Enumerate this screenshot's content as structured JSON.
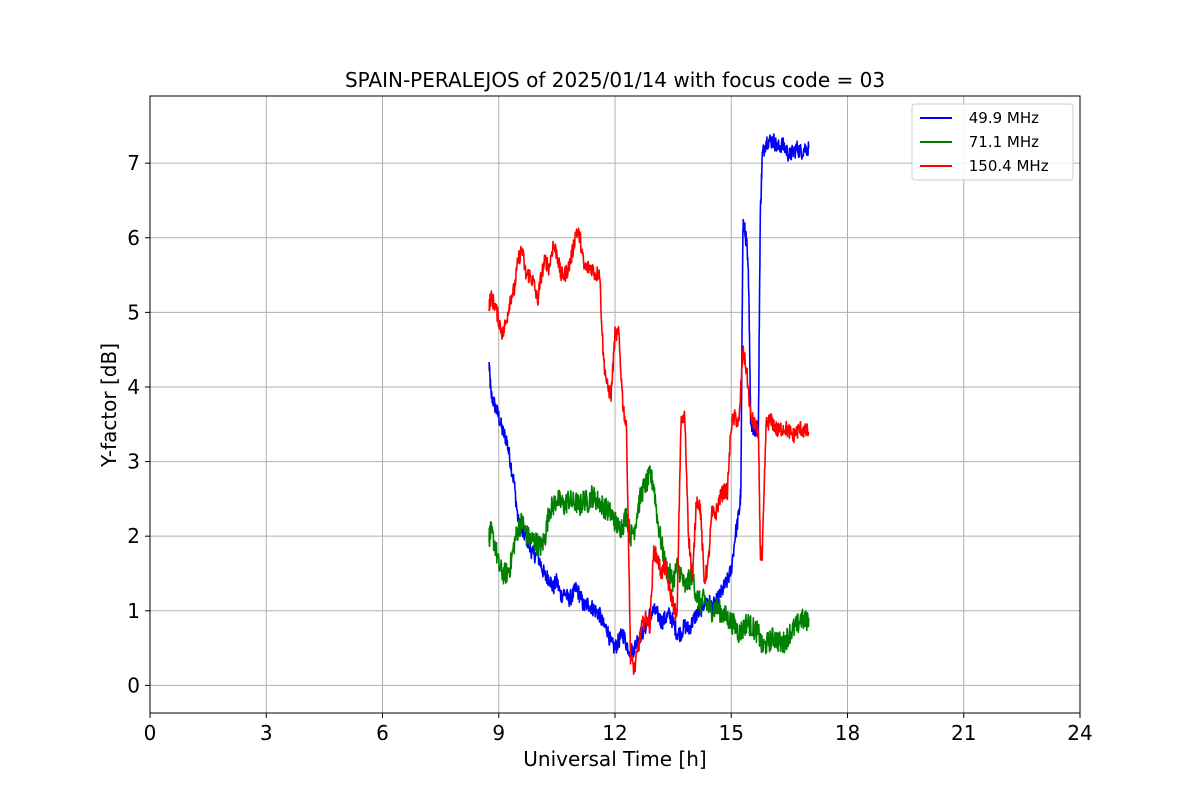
{
  "chart_data": {
    "type": "line",
    "title": "SPAIN-PERALEJOS of 2025/01/14 with focus code = 03",
    "xlabel": "Universal Time [h]",
    "ylabel": "Y-factor [dB]",
    "xlim": [
      0,
      24
    ],
    "ylim": [
      -0.37,
      7.9
    ],
    "xticks": [
      0,
      3,
      6,
      9,
      12,
      15,
      18,
      21,
      24
    ],
    "yticks": [
      0,
      1,
      2,
      3,
      4,
      5,
      6,
      7
    ],
    "grid": true,
    "legend_position": "top-right",
    "series": [
      {
        "name": " 49.9 MHz",
        "color": "#0000ff",
        "noise": 0.22,
        "x": [
          8.75,
          8.8,
          8.9,
          9.0,
          9.1,
          9.2,
          9.3,
          9.4,
          9.5,
          9.6,
          9.7,
          9.8,
          9.9,
          10.0,
          10.1,
          10.2,
          10.3,
          10.4,
          10.5,
          10.6,
          10.7,
          10.8,
          10.9,
          11.0,
          11.1,
          11.2,
          11.3,
          11.4,
          11.5,
          11.6,
          11.7,
          11.8,
          11.9,
          12.0,
          12.1,
          12.2,
          12.3,
          12.4,
          12.5,
          12.6,
          12.7,
          12.8,
          12.9,
          13.0,
          13.1,
          13.2,
          13.3,
          13.4,
          13.5,
          13.6,
          13.7,
          13.8,
          13.9,
          14.0,
          14.1,
          14.2,
          14.3,
          14.4,
          14.5,
          14.6,
          14.7,
          14.8,
          14.9,
          15.0,
          15.1,
          15.2,
          15.25,
          15.3,
          15.35,
          15.4,
          15.45,
          15.5,
          15.55,
          15.6,
          15.65,
          15.7,
          15.75,
          15.8,
          15.9,
          16.0,
          16.1,
          16.2,
          16.3,
          16.4,
          16.5,
          16.6,
          16.7,
          16.8,
          16.9,
          17.0
        ],
        "y": [
          4.3,
          3.9,
          3.75,
          3.6,
          3.4,
          3.3,
          3.0,
          2.7,
          2.2,
          2.05,
          2.0,
          1.85,
          1.75,
          1.75,
          1.6,
          1.45,
          1.45,
          1.3,
          1.4,
          1.2,
          1.25,
          1.15,
          1.2,
          1.3,
          1.2,
          1.05,
          1.1,
          1.05,
          1.0,
          0.95,
          0.8,
          0.75,
          0.55,
          0.5,
          0.6,
          0.7,
          0.55,
          0.45,
          0.5,
          0.65,
          0.7,
          0.8,
          0.95,
          1.0,
          0.95,
          0.85,
          0.9,
          0.95,
          0.85,
          0.7,
          0.7,
          0.8,
          0.75,
          0.85,
          0.95,
          1.0,
          1.1,
          1.15,
          1.05,
          1.1,
          1.2,
          1.3,
          1.4,
          1.55,
          2.0,
          2.3,
          2.6,
          6.2,
          6.1,
          5.9,
          5.4,
          3.6,
          3.45,
          3.4,
          3.45,
          3.45,
          6.3,
          7.1,
          7.3,
          7.3,
          7.3,
          7.2,
          7.25,
          7.2,
          7.1,
          7.15,
          7.2,
          7.15,
          7.2,
          7.2
        ]
      },
      {
        "name": " 71.1 MHz",
        "color": "#008000",
        "noise": 0.3,
        "x": [
          8.75,
          8.8,
          8.9,
          9.0,
          9.1,
          9.2,
          9.3,
          9.4,
          9.5,
          9.6,
          9.7,
          9.8,
          9.9,
          10.0,
          10.1,
          10.2,
          10.3,
          10.4,
          10.5,
          10.6,
          10.7,
          10.8,
          10.9,
          11.0,
          11.1,
          11.2,
          11.3,
          11.4,
          11.5,
          11.6,
          11.7,
          11.8,
          11.9,
          12.0,
          12.1,
          12.2,
          12.3,
          12.4,
          12.5,
          12.6,
          12.7,
          12.8,
          12.9,
          13.0,
          13.1,
          13.2,
          13.3,
          13.4,
          13.5,
          13.6,
          13.7,
          13.8,
          13.9,
          14.0,
          14.1,
          14.2,
          14.3,
          14.4,
          14.5,
          14.6,
          14.7,
          14.8,
          14.9,
          15.0,
          15.1,
          15.2,
          15.3,
          15.4,
          15.5,
          15.6,
          15.7,
          15.8,
          15.9,
          16.0,
          16.1,
          16.2,
          16.3,
          16.4,
          16.5,
          16.6,
          16.7,
          16.8,
          16.9,
          17.0
        ],
        "y": [
          2.0,
          2.05,
          1.9,
          1.6,
          1.5,
          1.5,
          1.6,
          1.9,
          2.1,
          2.2,
          2.05,
          1.95,
          1.95,
          1.9,
          1.85,
          2.0,
          2.35,
          2.4,
          2.5,
          2.45,
          2.4,
          2.5,
          2.45,
          2.45,
          2.4,
          2.5,
          2.45,
          2.55,
          2.5,
          2.45,
          2.4,
          2.35,
          2.3,
          2.2,
          2.1,
          2.15,
          2.3,
          2.0,
          2.1,
          2.4,
          2.6,
          2.7,
          2.8,
          2.7,
          2.2,
          1.9,
          1.6,
          1.5,
          1.4,
          1.6,
          1.5,
          1.3,
          1.4,
          1.5,
          1.2,
          1.1,
          1.15,
          1.05,
          1.0,
          1.05,
          1.0,
          0.95,
          0.9,
          0.85,
          0.8,
          0.7,
          0.75,
          0.85,
          0.8,
          0.75,
          0.7,
          0.5,
          0.55,
          0.6,
          0.65,
          0.6,
          0.55,
          0.6,
          0.7,
          0.75,
          0.8,
          0.9,
          0.85,
          0.9
        ]
      },
      {
        "name": " 150.4 MHz",
        "color": "#ff0000",
        "noise": 0.22,
        "x": [
          8.75,
          8.8,
          8.9,
          9.0,
          9.1,
          9.2,
          9.3,
          9.4,
          9.5,
          9.6,
          9.7,
          9.8,
          9.9,
          10.0,
          10.1,
          10.2,
          10.3,
          10.4,
          10.5,
          10.6,
          10.7,
          10.8,
          10.9,
          11.0,
          11.1,
          11.2,
          11.3,
          11.4,
          11.5,
          11.6,
          11.7,
          11.8,
          11.9,
          12.0,
          12.1,
          12.2,
          12.3,
          12.4,
          12.5,
          12.6,
          12.7,
          12.8,
          12.9,
          13.0,
          13.1,
          13.2,
          13.3,
          13.4,
          13.5,
          13.6,
          13.7,
          13.8,
          13.9,
          14.0,
          14.1,
          14.2,
          14.3,
          14.4,
          14.5,
          14.6,
          14.7,
          14.8,
          14.9,
          15.0,
          15.1,
          15.2,
          15.3,
          15.4,
          15.5,
          15.6,
          15.7,
          15.75,
          15.8,
          15.9,
          16.0,
          16.1,
          16.2,
          16.3,
          16.4,
          16.5,
          16.6,
          16.7,
          16.8,
          16.9,
          17.0
        ],
        "y": [
          5.1,
          5.2,
          5.1,
          4.9,
          4.7,
          4.9,
          5.2,
          5.3,
          5.7,
          5.85,
          5.5,
          5.5,
          5.4,
          5.15,
          5.5,
          5.7,
          5.6,
          5.9,
          5.8,
          5.5,
          5.5,
          5.6,
          5.8,
          6.1,
          6.0,
          5.6,
          5.6,
          5.6,
          5.5,
          5.55,
          4.4,
          4.0,
          3.9,
          4.7,
          4.7,
          3.8,
          3.4,
          0.4,
          0.2,
          0.5,
          0.8,
          0.9,
          0.8,
          1.8,
          1.7,
          1.5,
          1.6,
          1.3,
          1.1,
          0.9,
          3.5,
          3.6,
          2.0,
          1.4,
          2.5,
          2.4,
          1.4,
          1.6,
          2.3,
          2.3,
          2.5,
          2.6,
          2.6,
          3.5,
          3.6,
          3.5,
          4.5,
          4.2,
          3.6,
          3.5,
          3.4,
          1.8,
          1.7,
          3.5,
          3.55,
          3.5,
          3.4,
          3.45,
          3.45,
          3.4,
          3.35,
          3.4,
          3.45,
          3.4,
          3.4
        ]
      }
    ]
  }
}
